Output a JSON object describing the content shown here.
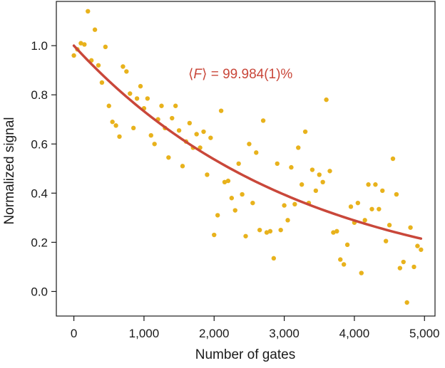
{
  "chart_data": {
    "type": "scatter",
    "title": "",
    "xlabel": "Number of gates",
    "ylabel": "Normalized signal",
    "xlim": [
      -250,
      5150
    ],
    "ylim": [
      -0.1,
      1.18
    ],
    "x_ticks": [
      0,
      1000,
      2000,
      3000,
      4000,
      5000
    ],
    "x_tick_labels": [
      "0",
      "1,000",
      "2,000",
      "3,000",
      "4,000",
      "5,000"
    ],
    "y_ticks": [
      0.0,
      0.2,
      0.4,
      0.6,
      0.8,
      1.0
    ],
    "y_tick_labels": [
      "0.0",
      "0.2",
      "0.4",
      "0.6",
      "0.8",
      "1.0"
    ],
    "grid": false,
    "annotation": {
      "prefix": "⟨",
      "variable": "F",
      "suffix": "⟩ = 99.984(1)%",
      "color": "#c9473a"
    },
    "fit": {
      "type": "exponential decay",
      "x_range": [
        0,
        4950
      ],
      "y_start": 1.0,
      "y_end": 0.215,
      "color": "#c9473a"
    },
    "series": [
      {
        "color": "#e8b21c",
        "points": [
          [
            0,
            0.96
          ],
          [
            50,
            0.985
          ],
          [
            100,
            1.01
          ],
          [
            150,
            1.005
          ],
          [
            200,
            1.14
          ],
          [
            250,
            0.94
          ],
          [
            300,
            1.065
          ],
          [
            350,
            0.92
          ],
          [
            400,
            0.85
          ],
          [
            450,
            0.995
          ],
          [
            500,
            0.755
          ],
          [
            550,
            0.69
          ],
          [
            600,
            0.675
          ],
          [
            650,
            0.63
          ],
          [
            700,
            0.915
          ],
          [
            750,
            0.895
          ],
          [
            800,
            0.805
          ],
          [
            850,
            0.665
          ],
          [
            900,
            0.785
          ],
          [
            950,
            0.835
          ],
          [
            1000,
            0.745
          ],
          [
            1050,
            0.785
          ],
          [
            1100,
            0.635
          ],
          [
            1150,
            0.6
          ],
          [
            1200,
            0.7
          ],
          [
            1250,
            0.755
          ],
          [
            1300,
            0.665
          ],
          [
            1350,
            0.545
          ],
          [
            1400,
            0.705
          ],
          [
            1450,
            0.755
          ],
          [
            1500,
            0.655
          ],
          [
            1550,
            0.51
          ],
          [
            1600,
            0.61
          ],
          [
            1650,
            0.685
          ],
          [
            1700,
            0.585
          ],
          [
            1750,
            0.64
          ],
          [
            1800,
            0.585
          ],
          [
            1850,
            0.65
          ],
          [
            1900,
            0.475
          ],
          [
            1950,
            0.625
          ],
          [
            2000,
            0.23
          ],
          [
            2050,
            0.31
          ],
          [
            2100,
            0.735
          ],
          [
            2150,
            0.445
          ],
          [
            2200,
            0.45
          ],
          [
            2250,
            0.38
          ],
          [
            2300,
            0.33
          ],
          [
            2350,
            0.52
          ],
          [
            2400,
            0.395
          ],
          [
            2450,
            0.225
          ],
          [
            2500,
            0.6
          ],
          [
            2550,
            0.36
          ],
          [
            2600,
            0.565
          ],
          [
            2650,
            0.25
          ],
          [
            2700,
            0.695
          ],
          [
            2750,
            0.24
          ],
          [
            2800,
            0.245
          ],
          [
            2850,
            0.135
          ],
          [
            2900,
            0.52
          ],
          [
            2950,
            0.25
          ],
          [
            3000,
            0.35
          ],
          [
            3050,
            0.29
          ],
          [
            3100,
            0.505
          ],
          [
            3150,
            0.355
          ],
          [
            3200,
            0.585
          ],
          [
            3250,
            0.435
          ],
          [
            3300,
            0.65
          ],
          [
            3350,
            0.36
          ],
          [
            3400,
            0.495
          ],
          [
            3450,
            0.41
          ],
          [
            3500,
            0.475
          ],
          [
            3550,
            0.445
          ],
          [
            3600,
            0.78
          ],
          [
            3650,
            0.49
          ],
          [
            3700,
            0.24
          ],
          [
            3750,
            0.245
          ],
          [
            3800,
            0.13
          ],
          [
            3850,
            0.11
          ],
          [
            3900,
            0.19
          ],
          [
            3950,
            0.345
          ],
          [
            4000,
            0.28
          ],
          [
            4050,
            0.36
          ],
          [
            4100,
            0.075
          ],
          [
            4150,
            0.29
          ],
          [
            4200,
            0.435
          ],
          [
            4250,
            0.335
          ],
          [
            4300,
            0.435
          ],
          [
            4350,
            0.335
          ],
          [
            4400,
            0.41
          ],
          [
            4450,
            0.205
          ],
          [
            4500,
            0.27
          ],
          [
            4550,
            0.54
          ],
          [
            4600,
            0.395
          ],
          [
            4650,
            0.095
          ],
          [
            4700,
            0.12
          ],
          [
            4750,
            -0.045
          ],
          [
            4800,
            0.26
          ],
          [
            4850,
            0.1
          ],
          [
            4900,
            0.185
          ],
          [
            4950,
            0.17
          ]
        ]
      }
    ]
  }
}
